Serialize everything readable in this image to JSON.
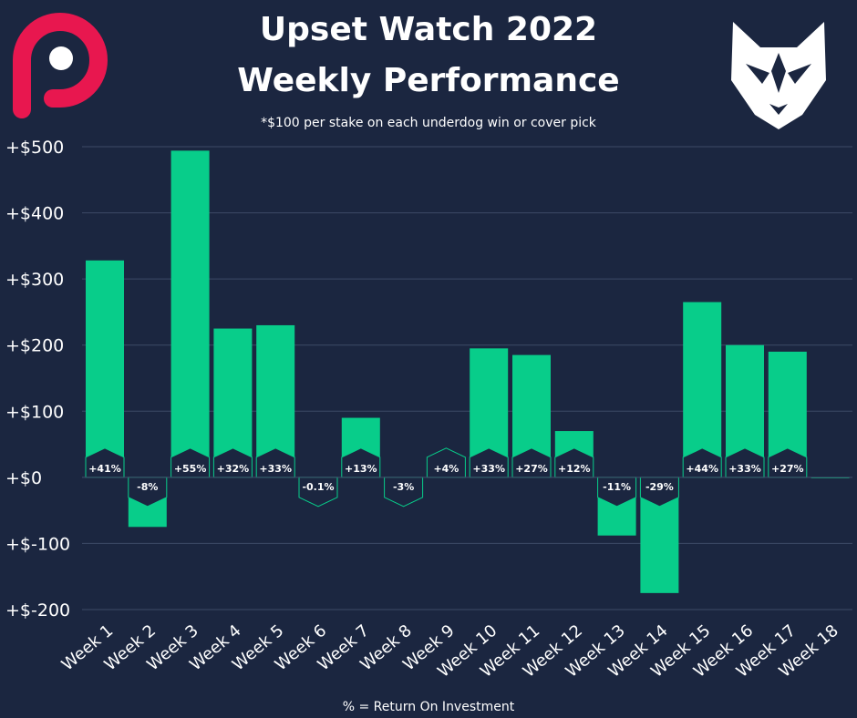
{
  "header": {
    "title_line1": "Upset Watch 2022",
    "title_line2": "Weekly Performance",
    "subtitle": "*$100 per stake on each underdog win or cover pick"
  },
  "footer": {
    "note": "% = Return On Investment"
  },
  "logos": {
    "left": "logo-p-icon",
    "right": "wolf-head-icon"
  },
  "colors": {
    "background": "#1b2640",
    "bar": "#08cd8a",
    "label_bg": "#1b2640",
    "grid": "#3c4a66",
    "text": "#ffffff",
    "logo_left": "#e8174f"
  },
  "chart_data": {
    "type": "bar",
    "title": "Upset Watch 2022 Weekly Performance",
    "subtitle": "*$100 per stake on each underdog win or cover pick",
    "xlabel": "",
    "ylabel": "",
    "note": "% = Return On Investment",
    "ylim": [
      -200,
      500
    ],
    "yticks": [
      500,
      400,
      300,
      200,
      100,
      0,
      -100,
      -200
    ],
    "ytick_labels": [
      "+$500",
      "+$400",
      "+$300",
      "+$200",
      "+$100",
      "+$0",
      "+$-100",
      "+$-200"
    ],
    "grid": true,
    "categories": [
      "Week 1",
      "Week 2",
      "Week 3",
      "Week 4",
      "Week 5",
      "Week 6",
      "Week 7",
      "Week 8",
      "Week 9",
      "Week 10",
      "Week 11",
      "Week 12",
      "Week 13",
      "Week 14",
      "Week 15",
      "Week 16",
      "Week 17",
      "Week 18"
    ],
    "values": [
      328,
      -75,
      494,
      225,
      230,
      -1,
      90,
      -3,
      4,
      195,
      185,
      70,
      -88,
      -175,
      265,
      200,
      190,
      0
    ],
    "roi_labels": [
      "+41%",
      "-8%",
      "+55%",
      "+32%",
      "+33%",
      "-0.1%",
      "+13%",
      "-3%",
      "+4%",
      "+33%",
      "+27%",
      "+12%",
      "-11%",
      "-29%",
      "+44%",
      "+33%",
      "+27%",
      ""
    ]
  }
}
